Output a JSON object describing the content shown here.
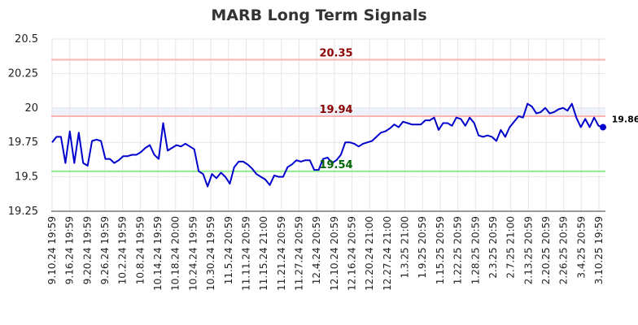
{
  "chart_data": {
    "type": "line",
    "title": "MARB Long Term Signals",
    "xlabel": "",
    "ylabel": "",
    "ylim": [
      19.25,
      20.5
    ],
    "yticks": [
      {
        "value": 19.25,
        "label": "19.25"
      },
      {
        "value": 19.5,
        "label": "19.5"
      },
      {
        "value": 19.75,
        "label": "19.75"
      },
      {
        "value": 20,
        "label": "20"
      },
      {
        "value": 20.25,
        "label": "20.25"
      },
      {
        "value": 20.5,
        "label": "20.5"
      }
    ],
    "grid": true,
    "x_tick_labels": [
      "9.10.24 19:59",
      "9.16.24 19:59",
      "9.20.24 19:59",
      "9.26.24 19:59",
      "10.2.24 19:59",
      "10.8.24 19:59",
      "10.14.24 19:59",
      "10.18.24 20:00",
      "10.24.24 19:59",
      "10.30.24 19:59",
      "11.5.24 20:59",
      "11.11.24 20:59",
      "11.15.24 21:00",
      "11.21.24 20:59",
      "11.27.24 20:59",
      "12.4.24 20:59",
      "12.10.24 20:59",
      "12.16.24 20:59",
      "12.20.24 21:00",
      "12.27.24 21:00",
      "1.3.25 21:00",
      "1.9.25 20:59",
      "1.15.25 20:59",
      "1.22.25 20:59",
      "1.28.25 20:59",
      "2.3.25 20:59",
      "2.7.25 21:00",
      "2.13.25 20:59",
      "2.20.25 20:59",
      "2.26.25 20:59",
      "3.4.25 20:59",
      "3.10.25 19:59"
    ],
    "reference_lines": [
      {
        "value": 20.35,
        "label": "20.35",
        "color": "#ffb3b3",
        "label_color": "#8b0000"
      },
      {
        "value": 19.94,
        "label": "19.94",
        "color": "#ffb3b3",
        "label_color": "#8b0000"
      },
      {
        "value": 19.54,
        "label": "19.54",
        "color": "#90ee90",
        "label_color": "#006400"
      }
    ],
    "band": {
      "from": 19.94,
      "to": 20.0,
      "color": "#eef2fb"
    },
    "series": [
      {
        "color": "#0000cc",
        "values": [
          19.75,
          19.79,
          19.79,
          19.6,
          19.83,
          19.6,
          19.82,
          19.6,
          19.58,
          19.76,
          19.77,
          19.76,
          19.63,
          19.63,
          19.6,
          19.62,
          19.65,
          19.65,
          19.66,
          19.66,
          19.68,
          19.71,
          19.73,
          19.66,
          19.63,
          19.89,
          19.69,
          19.71,
          19.73,
          19.72,
          19.74,
          19.72,
          19.7,
          19.54,
          19.52,
          19.43,
          19.52,
          19.49,
          19.53,
          19.5,
          19.45,
          19.57,
          19.61,
          19.61,
          19.59,
          19.56,
          19.52,
          19.5,
          19.48,
          19.44,
          19.51,
          19.5,
          19.5,
          19.57,
          19.59,
          19.62,
          19.61,
          19.62,
          19.62,
          19.55,
          19.55,
          19.63,
          19.64,
          19.6,
          19.62,
          19.66,
          19.75,
          19.75,
          19.74,
          19.72,
          19.74,
          19.75,
          19.76,
          19.79,
          19.82,
          19.83,
          19.85,
          19.88,
          19.86,
          19.9,
          19.89,
          19.88,
          19.88,
          19.88,
          19.91,
          19.91,
          19.93,
          19.84,
          19.89,
          19.89,
          19.87,
          19.93,
          19.92,
          19.87,
          19.93,
          19.89,
          19.8,
          19.79,
          19.8,
          19.79,
          19.76,
          19.84,
          19.79,
          19.86,
          19.9,
          19.94,
          19.93,
          20.03,
          20.01,
          19.96,
          19.97,
          20.0,
          19.96,
          19.97,
          19.99,
          20.0,
          19.98,
          20.03,
          19.93,
          19.86,
          19.92,
          19.86,
          19.93,
          19.87,
          19.86
        ]
      }
    ],
    "last_value": {
      "value": 19.86,
      "label": "19.86",
      "color": "#0000cc"
    }
  }
}
